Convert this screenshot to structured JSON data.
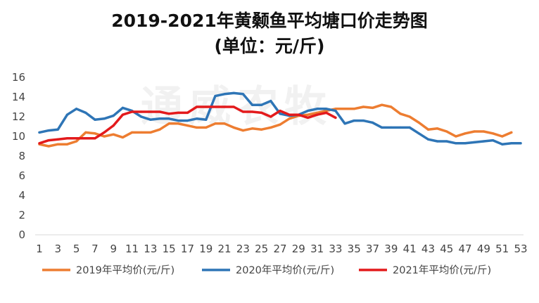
{
  "title_line1": "2019-2021年黄颡鱼平均塘口价走势图",
  "title_line2": "(单位：元/斤)",
  "watermark": "通威农牧",
  "chart_data": {
    "type": "line",
    "title": "2019-2021年黄颡鱼平均塘口价走势图 (单位：元/斤)",
    "xlabel": "",
    "ylabel": "",
    "x_range": [
      1,
      53
    ],
    "x_tick_labels": [
      "1",
      "3",
      "5",
      "7",
      "9",
      "11",
      "13",
      "15",
      "17",
      "19",
      "21",
      "23",
      "25",
      "27",
      "29",
      "31",
      "33",
      "35",
      "37",
      "39",
      "41",
      "43",
      "45",
      "47",
      "49",
      "51",
      "53"
    ],
    "ylim": [
      0,
      16
    ],
    "y_ticks": [
      0,
      2,
      4,
      6,
      8,
      10,
      12,
      14,
      16
    ],
    "grid": false,
    "legend_position": "bottom",
    "series": [
      {
        "name": "2019年平均价(元/斤)",
        "color": "#ED7D31",
        "x": [
          1,
          2,
          3,
          4,
          5,
          6,
          7,
          8,
          9,
          10,
          11,
          12,
          13,
          14,
          15,
          16,
          17,
          18,
          19,
          20,
          21,
          22,
          23,
          24,
          25,
          26,
          27,
          28,
          29,
          30,
          31,
          32,
          33,
          34,
          35,
          36,
          37,
          38,
          39,
          40,
          41,
          42,
          43,
          44,
          45,
          46,
          47,
          48,
          49,
          50,
          51,
          52
        ],
        "values": [
          9.2,
          9.0,
          9.2,
          9.2,
          9.5,
          10.4,
          10.3,
          10.0,
          10.2,
          9.9,
          10.4,
          10.4,
          10.4,
          10.7,
          11.3,
          11.3,
          11.1,
          10.9,
          10.9,
          11.3,
          11.3,
          10.9,
          10.6,
          10.8,
          10.7,
          10.9,
          11.2,
          11.8,
          12.1,
          12.2,
          12.4,
          12.6,
          12.8,
          12.8,
          12.8,
          13.0,
          12.9,
          13.2,
          13.0,
          12.3,
          12.0,
          11.4,
          10.7,
          10.8,
          10.5,
          10.0,
          10.3,
          10.5,
          10.5,
          10.3,
          10.0,
          10.4
        ]
      },
      {
        "name": "2020年平均价(元/斤)",
        "color": "#2E75B6",
        "x": [
          1,
          2,
          3,
          4,
          5,
          6,
          7,
          8,
          9,
          10,
          11,
          12,
          13,
          14,
          15,
          16,
          17,
          18,
          19,
          20,
          21,
          22,
          23,
          24,
          25,
          26,
          27,
          28,
          29,
          30,
          31,
          32,
          33,
          34,
          35,
          36,
          37,
          38,
          39,
          40,
          41,
          42,
          43,
          44,
          45,
          46,
          47,
          48,
          49,
          50,
          51,
          52,
          53
        ],
        "values": [
          10.4,
          10.6,
          10.7,
          12.2,
          12.8,
          12.4,
          11.7,
          11.8,
          12.1,
          12.9,
          12.6,
          12.0,
          11.7,
          11.8,
          11.8,
          11.6,
          11.6,
          11.8,
          11.7,
          14.1,
          14.3,
          14.4,
          14.3,
          13.2,
          13.2,
          13.6,
          12.3,
          12.1,
          12.2,
          12.6,
          12.8,
          12.8,
          12.6,
          11.3,
          11.6,
          11.6,
          11.4,
          10.9,
          10.9,
          10.9,
          10.9,
          10.3,
          9.7,
          9.5,
          9.5,
          9.3,
          9.3,
          9.4,
          9.5,
          9.6,
          9.2,
          9.3,
          9.3
        ]
      },
      {
        "name": "2021年平均价(元/斤)",
        "color": "#E31A1C",
        "x": [
          1,
          2,
          3,
          4,
          5,
          6,
          7,
          8,
          9,
          10,
          11,
          12,
          13,
          14,
          15,
          16,
          17,
          18,
          19,
          20,
          21,
          22,
          23,
          24,
          25,
          26,
          27,
          28,
          29,
          30,
          31,
          32,
          33
        ],
        "values": [
          9.3,
          9.6,
          9.7,
          9.8,
          9.8,
          9.8,
          9.8,
          10.4,
          11.1,
          12.2,
          12.5,
          12.5,
          12.5,
          12.5,
          12.3,
          12.4,
          12.4,
          13.0,
          13.0,
          13.0,
          13.0,
          13.0,
          12.5,
          12.5,
          12.4,
          12.0,
          12.6,
          12.2,
          12.2,
          11.9,
          12.2,
          12.4,
          11.9
        ]
      }
    ]
  }
}
